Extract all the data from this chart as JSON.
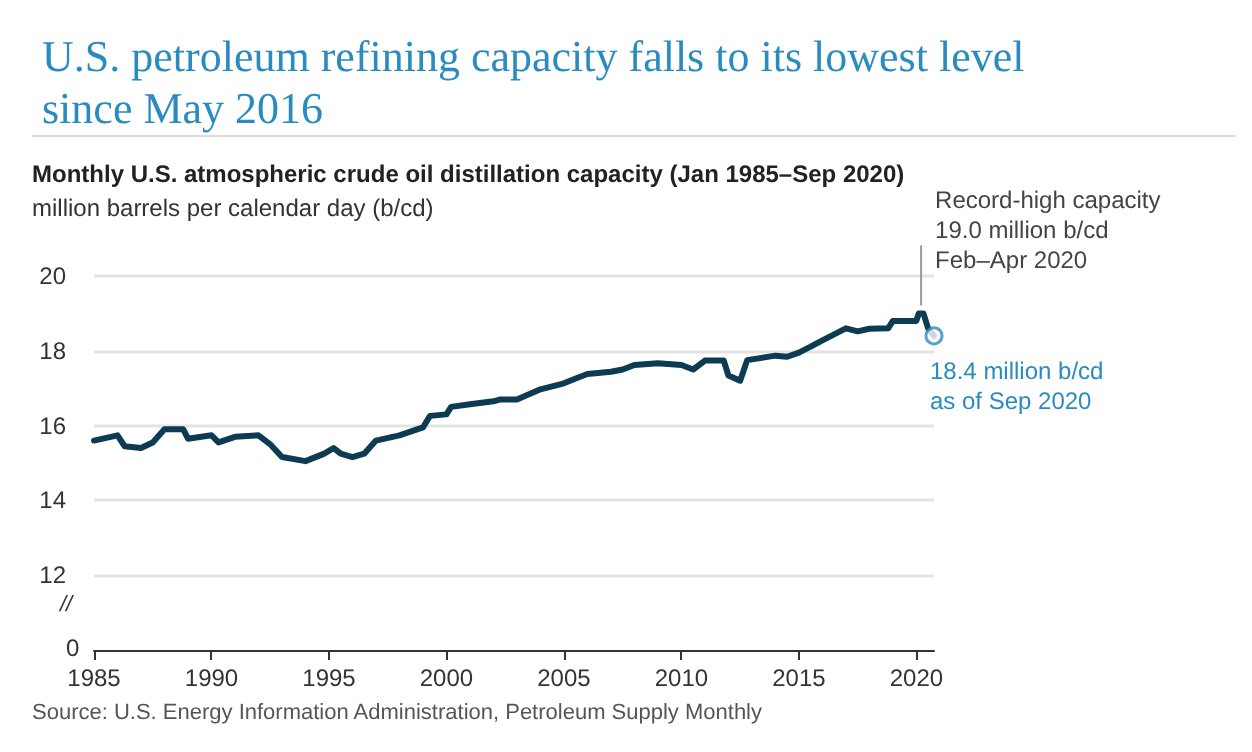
{
  "chart_data": {
    "type": "line",
    "title": "U.S. petroleum refining capacity falls to its lowest level since May 2016",
    "subtitle": "Monthly U.S. atmospheric crude oil distillation capacity (Jan 1985–Sep 2020)",
    "ylabel": "million barrels per calendar day (b/cd)",
    "x": [
      1985,
      1986,
      1986.3,
      1987,
      1987.5,
      1988,
      1988.8,
      1989,
      1990,
      1990.3,
      1991,
      1992,
      1992.5,
      1993,
      1994,
      1994.8,
      1995.2,
      1995.5,
      1996,
      1996.5,
      1997,
      1998,
      1999,
      1999.3,
      2000,
      2000.2,
      2001,
      2002,
      2002.3,
      2003,
      2004,
      2005,
      2005.5,
      2006,
      2007,
      2007.5,
      2008,
      2009,
      2010,
      2010.5,
      2011,
      2011.8,
      2012,
      2012.5,
      2012.8,
      2014,
      2014.5,
      2015,
      2015.5,
      2016,
      2016.5,
      2017,
      2017.5,
      2018,
      2018.8,
      2019,
      2020,
      2020.1,
      2020.3,
      2020.5,
      2020.75
    ],
    "series": [
      {
        "color": "#0d3b54",
        "values": [
          15.6,
          15.74,
          15.45,
          15.4,
          15.55,
          15.9,
          15.9,
          15.65,
          15.74,
          15.55,
          15.7,
          15.74,
          15.5,
          15.16,
          15.05,
          15.25,
          15.4,
          15.25,
          15.16,
          15.25,
          15.6,
          15.74,
          15.95,
          16.26,
          16.3,
          16.5,
          16.57,
          16.65,
          16.7,
          16.7,
          16.97,
          17.13,
          17.26,
          17.38,
          17.44,
          17.5,
          17.62,
          17.67,
          17.62,
          17.5,
          17.74,
          17.74,
          17.34,
          17.2,
          17.75,
          17.87,
          17.84,
          17.95,
          18.11,
          18.28,
          18.44,
          18.6,
          18.52,
          18.59,
          18.6,
          18.8,
          18.8,
          19.0,
          19.0,
          18.6,
          18.4
        ]
      }
    ],
    "xlim": [
      1985,
      2020.75
    ],
    "xticks": [
      1985,
      1990,
      1995,
      2000,
      2005,
      2010,
      2015,
      2020
    ],
    "ylim": [
      10,
      20
    ],
    "yticks": [
      12,
      14,
      16,
      18,
      20
    ],
    "grid": "y",
    "marker": "none",
    "line_style": "solid",
    "annotations": [
      {
        "text": "Record-high capacity\n19.0 million b/cd\nFeb–Apr 2020",
        "x": 2020.2,
        "y": 19.0
      },
      {
        "text": "18.4 million b/cd\nas of Sep 2020",
        "x": 2020.75,
        "y": 18.4
      },
      "Source: U.S. Energy Information Administration, Petroleum Supply Monthly",
      "//",
      "0"
    ]
  }
}
